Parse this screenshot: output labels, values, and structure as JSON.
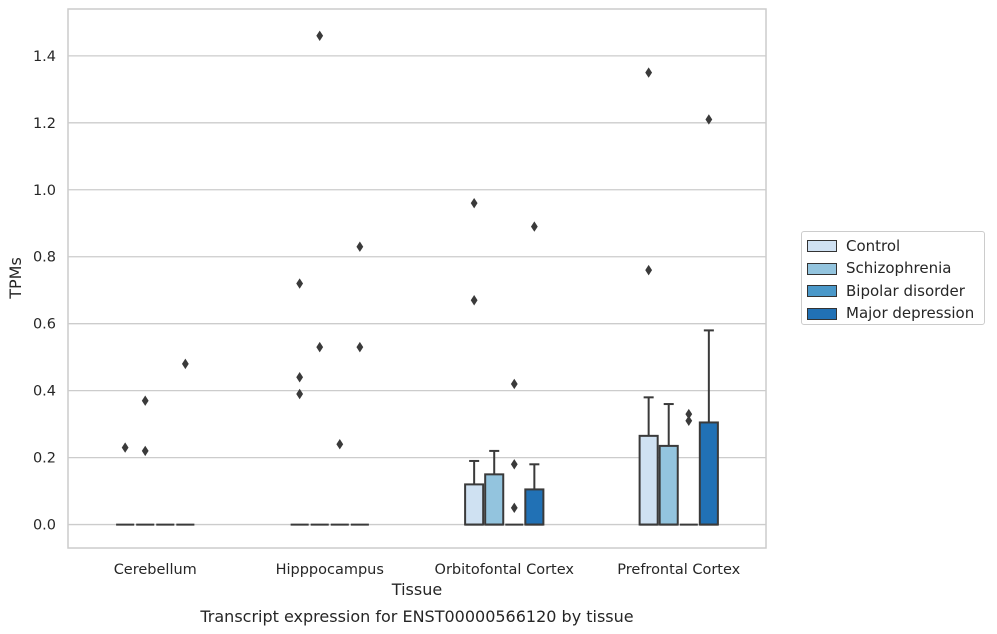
{
  "chart_data": {
    "type": "box",
    "title": "",
    "caption": "Transcript expression for ENST00000566120 by tissue",
    "xlabel": "Tissue",
    "ylabel": "TPMs",
    "ylim": [
      -0.07,
      1.54
    ],
    "yticks": [
      "0.0",
      "0.2",
      "0.4",
      "0.6",
      "0.8",
      "1.0",
      "1.2",
      "1.4"
    ],
    "ytick_values": [
      0,
      0.2,
      0.4,
      0.6,
      0.8,
      1.0,
      1.2,
      1.4
    ],
    "grid": true,
    "legend_position": "right",
    "categories": [
      "Cerebellum",
      "Hipppocampus",
      "Orbitofontal Cortex",
      "Prefrontal Cortex"
    ],
    "series": [
      {
        "name": "Control",
        "color": "#cfe1f2",
        "boxes": [
          {
            "q1": 0,
            "median": 0,
            "q3": 0,
            "whisker_low": 0,
            "whisker_high": 0,
            "outliers": [
              0.23
            ]
          },
          {
            "q1": 0,
            "median": 0,
            "q3": 0,
            "whisker_low": 0,
            "whisker_high": 0,
            "outliers": [
              0.72,
              0.44,
              0.39
            ]
          },
          {
            "q1": 0,
            "median": 0,
            "q3": 0.12,
            "whisker_low": 0,
            "whisker_high": 0.19,
            "outliers": [
              0.96,
              0.67
            ]
          },
          {
            "q1": 0,
            "median": 0,
            "q3": 0.265,
            "whisker_low": 0,
            "whisker_high": 0.38,
            "outliers": [
              1.35,
              0.76
            ]
          }
        ]
      },
      {
        "name": "Schizophrenia",
        "color": "#93c4de",
        "boxes": [
          {
            "q1": 0,
            "median": 0,
            "q3": 0,
            "whisker_low": 0,
            "whisker_high": 0,
            "outliers": [
              0.37,
              0.22
            ]
          },
          {
            "q1": 0,
            "median": 0,
            "q3": 0,
            "whisker_low": 0,
            "whisker_high": 0,
            "outliers": [
              1.46,
              0.53
            ]
          },
          {
            "q1": 0,
            "median": 0,
            "q3": 0.15,
            "whisker_low": 0,
            "whisker_high": 0.22,
            "outliers": []
          },
          {
            "q1": 0,
            "median": 0,
            "q3": 0.235,
            "whisker_low": 0,
            "whisker_high": 0.36,
            "outliers": []
          }
        ]
      },
      {
        "name": "Bipolar disorder",
        "color": "#4a98c9",
        "boxes": [
          {
            "q1": 0,
            "median": 0,
            "q3": 0,
            "whisker_low": 0,
            "whisker_high": 0,
            "outliers": []
          },
          {
            "q1": 0,
            "median": 0,
            "q3": 0,
            "whisker_low": 0,
            "whisker_high": 0,
            "outliers": [
              0.24
            ]
          },
          {
            "q1": 0,
            "median": 0,
            "q3": 0,
            "whisker_low": 0,
            "whisker_high": 0,
            "outliers": [
              0.42,
              0.18,
              0.05
            ]
          },
          {
            "q1": 0,
            "median": 0,
            "q3": 0,
            "whisker_low": 0,
            "whisker_high": 0,
            "outliers": [
              0.33,
              0.31
            ]
          }
        ]
      },
      {
        "name": "Major depression",
        "color": "#2171b5",
        "boxes": [
          {
            "q1": 0,
            "median": 0,
            "q3": 0,
            "whisker_low": 0,
            "whisker_high": 0,
            "outliers": [
              0.48
            ]
          },
          {
            "q1": 0,
            "median": 0,
            "q3": 0,
            "whisker_low": 0,
            "whisker_high": 0,
            "outliers": [
              0.83,
              0.53
            ]
          },
          {
            "q1": 0,
            "median": 0,
            "q3": 0.105,
            "whisker_low": 0,
            "whisker_high": 0.18,
            "outliers": [
              0.89
            ]
          },
          {
            "q1": 0,
            "median": 0,
            "q3": 0.305,
            "whisker_low": 0,
            "whisker_high": 0.58,
            "outliers": [
              1.21
            ]
          }
        ]
      }
    ]
  }
}
